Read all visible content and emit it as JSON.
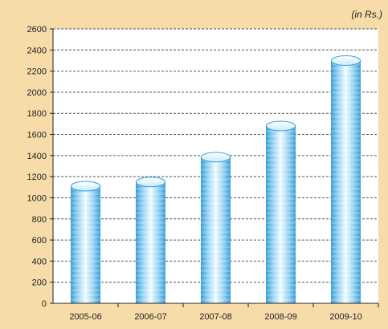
{
  "chart_data": {
    "type": "bar",
    "unit_note": "(in Rs.)",
    "categories": [
      "2005-06",
      "2006-07",
      "2007-08",
      "2008-09",
      "2009-10"
    ],
    "values": [
      1110,
      1150,
      1385,
      1680,
      2300
    ],
    "ylim": [
      0,
      2600
    ],
    "yticks": [
      0,
      200,
      400,
      600,
      800,
      1000,
      1200,
      1400,
      1600,
      1800,
      2000,
      2200,
      2400,
      2600
    ],
    "grid": true,
    "colors": {
      "background": "#f7dcaa",
      "plot_background": "#ffffff",
      "bar_edge": "#3a9ed6",
      "bar_light": "#e6f6ff",
      "bar_mid": "#8fd0f2",
      "grid": "#555555"
    }
  }
}
